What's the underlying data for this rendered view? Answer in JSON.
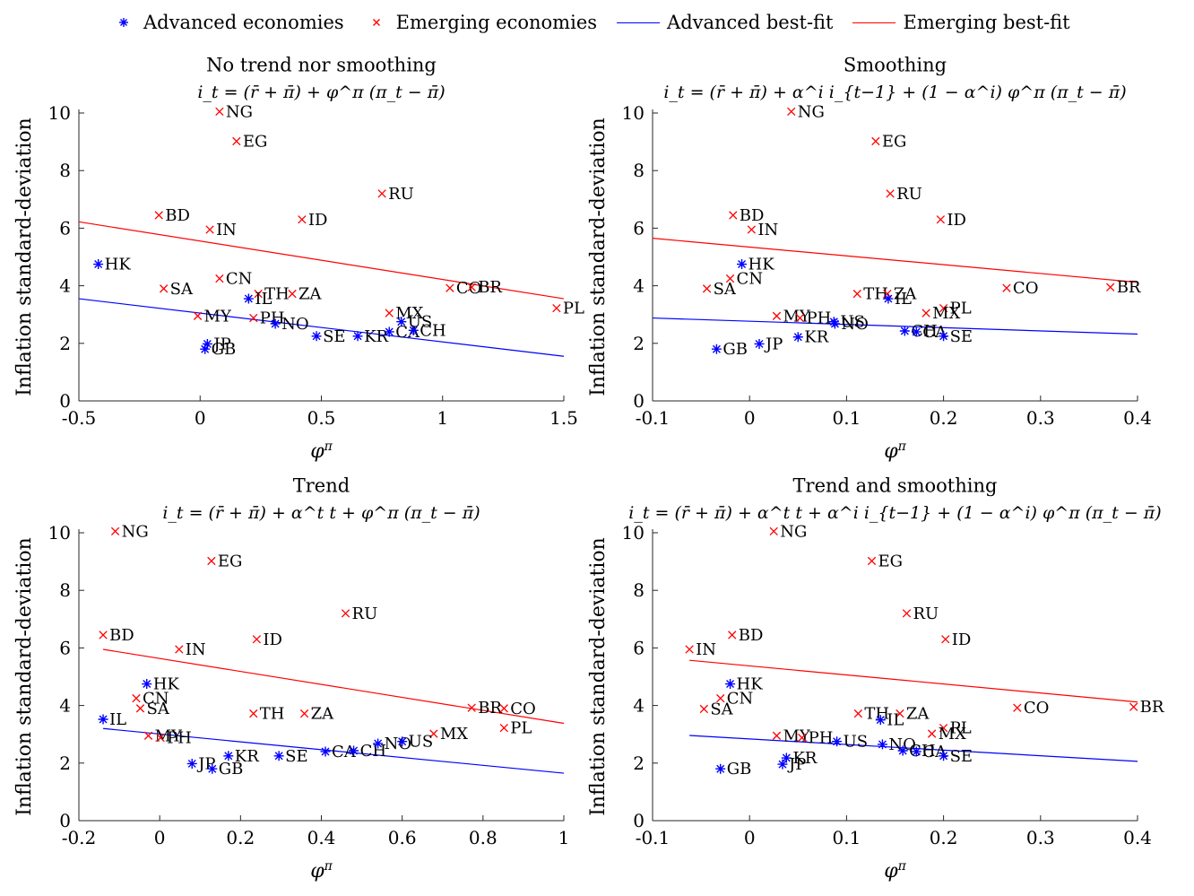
{
  "colors": {
    "advanced": "#0000ff",
    "emerging": "#ff0000",
    "axis": "#262626"
  },
  "legend": {
    "adv_markers": "Advanced economies",
    "emg_markers": "Emerging economies",
    "adv_fit": "Advanced best-fit",
    "emg_fit": "Emerging best-fit"
  },
  "chart_data": [
    {
      "type": "scatter",
      "title": "No trend nor smoothing",
      "subtitle": "i_t = (r̄ + π̄) + φ^π (π_t − π̄)",
      "xlabel": "φ^π",
      "ylabel": "Inflation standard-deviation",
      "xlim": [
        -0.5,
        1.5
      ],
      "ylim": [
        0,
        10
      ],
      "xticks": [
        "-0.5",
        "0",
        "0.5",
        "1",
        "1.5"
      ],
      "xtick_values": [
        -0.5,
        0,
        0.5,
        1,
        1.5
      ],
      "yticks": [
        "0",
        "2",
        "4",
        "6",
        "8",
        "10"
      ],
      "ytick_values": [
        0,
        2,
        4,
        6,
        8,
        10
      ],
      "grid": false,
      "advanced": [
        {
          "label": "HK",
          "x": -0.42,
          "y": 4.75
        },
        {
          "label": "IL",
          "x": 0.2,
          "y": 3.55
        },
        {
          "label": "JP",
          "x": 0.03,
          "y": 1.98
        },
        {
          "label": "GB",
          "x": 0.02,
          "y": 1.8
        },
        {
          "label": "NO",
          "x": 0.31,
          "y": 2.68
        },
        {
          "label": "SE",
          "x": 0.48,
          "y": 2.25
        },
        {
          "label": "KR",
          "x": 0.65,
          "y": 2.25
        },
        {
          "label": "CA",
          "x": 0.78,
          "y": 2.4
        },
        {
          "label": "US",
          "x": 0.83,
          "y": 2.75
        },
        {
          "label": "CH",
          "x": 0.88,
          "y": 2.45
        }
      ],
      "emerging": [
        {
          "label": "NG",
          "x": 0.08,
          "y": 10.05
        },
        {
          "label": "EG",
          "x": 0.15,
          "y": 9.02
        },
        {
          "label": "RU",
          "x": 0.75,
          "y": 7.2
        },
        {
          "label": "BD",
          "x": -0.17,
          "y": 6.45
        },
        {
          "label": "ID",
          "x": 0.42,
          "y": 6.3
        },
        {
          "label": "IN",
          "x": 0.04,
          "y": 5.95
        },
        {
          "label": "CN",
          "x": 0.08,
          "y": 4.25
        },
        {
          "label": "SA",
          "x": -0.15,
          "y": 3.9
        },
        {
          "label": "TH",
          "x": 0.24,
          "y": 3.72
        },
        {
          "label": "ZA",
          "x": 0.38,
          "y": 3.72
        },
        {
          "label": "CO",
          "x": 1.03,
          "y": 3.92
        },
        {
          "label": "BR",
          "x": 1.12,
          "y": 3.95
        },
        {
          "label": "PL",
          "x": 1.47,
          "y": 3.22
        },
        {
          "label": "MX",
          "x": 0.78,
          "y": 3.05
        },
        {
          "label": "MY",
          "x": -0.01,
          "y": 2.95
        },
        {
          "label": "PH",
          "x": 0.22,
          "y": 2.88
        }
      ],
      "fit_advanced": [
        [
          -0.5,
          3.55
        ],
        [
          1.5,
          1.55
        ]
      ],
      "fit_emerging": [
        [
          -0.5,
          6.22
        ],
        [
          1.5,
          3.55
        ]
      ]
    },
    {
      "type": "scatter",
      "title": "Smoothing",
      "subtitle": "i_t = (r̄ + π̄) + α^i i_{t−1} + (1 − α^i) φ^π (π_t − π̄)",
      "xlabel": "φ^π",
      "ylabel": "Inflation standard-deviation",
      "xlim": [
        -0.1,
        0.4
      ],
      "ylim": [
        0,
        10
      ],
      "xticks": [
        "-0.1",
        "0",
        "0.1",
        "0.2",
        "0.3",
        "0.4"
      ],
      "xtick_values": [
        -0.1,
        0,
        0.1,
        0.2,
        0.3,
        0.4
      ],
      "yticks": [
        "0",
        "2",
        "4",
        "6",
        "8",
        "10"
      ],
      "ytick_values": [
        0,
        2,
        4,
        6,
        8,
        10
      ],
      "grid": false,
      "advanced": [
        {
          "label": "HK",
          "x": -0.008,
          "y": 4.75
        },
        {
          "label": "IL",
          "x": 0.143,
          "y": 3.55
        },
        {
          "label": "JP",
          "x": 0.01,
          "y": 1.98
        },
        {
          "label": "GB",
          "x": -0.034,
          "y": 1.8
        },
        {
          "label": "KR",
          "x": 0.05,
          "y": 2.22
        },
        {
          "label": "US",
          "x": 0.087,
          "y": 2.75
        },
        {
          "label": "NO",
          "x": 0.088,
          "y": 2.68
        },
        {
          "label": "CH",
          "x": 0.16,
          "y": 2.43
        },
        {
          "label": "CA",
          "x": 0.172,
          "y": 2.4
        },
        {
          "label": "SE",
          "x": 0.2,
          "y": 2.25
        }
      ],
      "emerging": [
        {
          "label": "NG",
          "x": 0.043,
          "y": 10.05
        },
        {
          "label": "EG",
          "x": 0.13,
          "y": 9.02
        },
        {
          "label": "RU",
          "x": 0.145,
          "y": 7.2
        },
        {
          "label": "BD",
          "x": -0.017,
          "y": 6.45
        },
        {
          "label": "ID",
          "x": 0.197,
          "y": 6.3
        },
        {
          "label": "IN",
          "x": 0.002,
          "y": 5.95
        },
        {
          "label": "CN",
          "x": -0.02,
          "y": 4.25
        },
        {
          "label": "SA",
          "x": -0.044,
          "y": 3.9
        },
        {
          "label": "TH",
          "x": 0.111,
          "y": 3.72
        },
        {
          "label": "ZA",
          "x": 0.142,
          "y": 3.72
        },
        {
          "label": "CO",
          "x": 0.265,
          "y": 3.92
        },
        {
          "label": "BR",
          "x": 0.372,
          "y": 3.95
        },
        {
          "label": "PL",
          "x": 0.2,
          "y": 3.22
        },
        {
          "label": "MX",
          "x": 0.182,
          "y": 3.05
        },
        {
          "label": "MY",
          "x": 0.028,
          "y": 2.95
        },
        {
          "label": "PH",
          "x": 0.052,
          "y": 2.88
        }
      ],
      "fit_advanced": [
        [
          -0.1,
          2.88
        ],
        [
          0.4,
          2.32
        ]
      ],
      "fit_emerging": [
        [
          -0.1,
          5.65
        ],
        [
          0.4,
          4.12
        ]
      ]
    },
    {
      "type": "scatter",
      "title": "Trend",
      "subtitle": "i_t = (r̄ + π̄) + α^t t + φ^π (π_t − π̄)",
      "xlabel": "φ^π",
      "ylabel": "Inflation standard-deviation",
      "xlim": [
        -0.2,
        1
      ],
      "ylim": [
        0,
        10
      ],
      "xticks": [
        "-0.2",
        "0",
        "0.2",
        "0.4",
        "0.6",
        "0.8",
        "1"
      ],
      "xtick_values": [
        -0.2,
        0,
        0.2,
        0.4,
        0.6,
        0.8,
        1
      ],
      "yticks": [
        "0",
        "2",
        "4",
        "6",
        "8",
        "10"
      ],
      "ytick_values": [
        0,
        2,
        4,
        6,
        8,
        10
      ],
      "grid": false,
      "advanced": [
        {
          "label": "IL",
          "x": -0.14,
          "y": 3.52
        },
        {
          "label": "HK",
          "x": -0.032,
          "y": 4.75
        },
        {
          "label": "JP",
          "x": 0.08,
          "y": 1.98
        },
        {
          "label": "GB",
          "x": 0.13,
          "y": 1.8
        },
        {
          "label": "KR",
          "x": 0.17,
          "y": 2.25
        },
        {
          "label": "SE",
          "x": 0.295,
          "y": 2.25
        },
        {
          "label": "CA",
          "x": 0.41,
          "y": 2.4
        },
        {
          "label": "CH",
          "x": 0.48,
          "y": 2.43
        },
        {
          "label": "NO",
          "x": 0.54,
          "y": 2.68
        },
        {
          "label": "US",
          "x": 0.6,
          "y": 2.75
        }
      ],
      "emerging": [
        {
          "label": "NG",
          "x": -0.11,
          "y": 10.05
        },
        {
          "label": "EG",
          "x": 0.128,
          "y": 9.02
        },
        {
          "label": "RU",
          "x": 0.46,
          "y": 7.2
        },
        {
          "label": "BD",
          "x": -0.14,
          "y": 6.45
        },
        {
          "label": "ID",
          "x": 0.24,
          "y": 6.3
        },
        {
          "label": "IN",
          "x": 0.048,
          "y": 5.95
        },
        {
          "label": "CN",
          "x": -0.058,
          "y": 4.25
        },
        {
          "label": "SA",
          "x": -0.048,
          "y": 3.9
        },
        {
          "label": "TH",
          "x": 0.232,
          "y": 3.72
        },
        {
          "label": "ZA",
          "x": 0.358,
          "y": 3.72
        },
        {
          "label": "BR",
          "x": 0.772,
          "y": 3.92
        },
        {
          "label": "CO",
          "x": 0.852,
          "y": 3.9
        },
        {
          "label": "PL",
          "x": 0.852,
          "y": 3.22
        },
        {
          "label": "MX",
          "x": 0.678,
          "y": 3.02
        },
        {
          "label": "MY",
          "x": -0.028,
          "y": 2.95
        },
        {
          "label": "PH",
          "x": 0.002,
          "y": 2.88
        }
      ],
      "fit_advanced": [
        [
          -0.14,
          3.2
        ],
        [
          1,
          1.65
        ]
      ],
      "fit_emerging": [
        [
          -0.14,
          5.95
        ],
        [
          1,
          3.38
        ]
      ]
    },
    {
      "type": "scatter",
      "title": "Trend and smoothing",
      "subtitle": "i_t = (r̄ + π̄) + α^t t + α^i i_{t−1} + (1 − α^i) φ^π (π_t − π̄)",
      "xlabel": "φ^π",
      "ylabel": "Inflation standard-deviation",
      "xlim": [
        -0.1,
        0.4
      ],
      "ylim": [
        0,
        10
      ],
      "xticks": [
        "-0.1",
        "0",
        "0.1",
        "0.2",
        "0.3",
        "0.4"
      ],
      "xtick_values": [
        -0.1,
        0,
        0.1,
        0.2,
        0.3,
        0.4
      ],
      "yticks": [
        "0",
        "2",
        "4",
        "6",
        "8",
        "10"
      ],
      "ytick_values": [
        0,
        2,
        4,
        6,
        8,
        10
      ],
      "grid": false,
      "advanced": [
        {
          "label": "HK",
          "x": -0.02,
          "y": 4.75
        },
        {
          "label": "IL",
          "x": 0.135,
          "y": 3.5
        },
        {
          "label": "KR",
          "x": 0.038,
          "y": 2.18
        },
        {
          "label": "JP",
          "x": 0.034,
          "y": 1.96
        },
        {
          "label": "GB",
          "x": -0.03,
          "y": 1.8
        },
        {
          "label": "US",
          "x": 0.09,
          "y": 2.75
        },
        {
          "label": "NO",
          "x": 0.137,
          "y": 2.65
        },
        {
          "label": "CH",
          "x": 0.158,
          "y": 2.43
        },
        {
          "label": "CA",
          "x": 0.172,
          "y": 2.4
        },
        {
          "label": "SE",
          "x": 0.2,
          "y": 2.25
        }
      ],
      "emerging": [
        {
          "label": "NG",
          "x": 0.025,
          "y": 10.05
        },
        {
          "label": "EG",
          "x": 0.126,
          "y": 9.02
        },
        {
          "label": "RU",
          "x": 0.162,
          "y": 7.2
        },
        {
          "label": "BD",
          "x": -0.018,
          "y": 6.45
        },
        {
          "label": "ID",
          "x": 0.202,
          "y": 6.3
        },
        {
          "label": "IN",
          "x": -0.062,
          "y": 5.95
        },
        {
          "label": "CN",
          "x": -0.03,
          "y": 4.25
        },
        {
          "label": "SA",
          "x": -0.047,
          "y": 3.88
        },
        {
          "label": "TH",
          "x": 0.112,
          "y": 3.72
        },
        {
          "label": "ZA",
          "x": 0.155,
          "y": 3.72
        },
        {
          "label": "CO",
          "x": 0.276,
          "y": 3.92
        },
        {
          "label": "BR",
          "x": 0.396,
          "y": 3.95
        },
        {
          "label": "PL",
          "x": 0.2,
          "y": 3.22
        },
        {
          "label": "MX",
          "x": 0.188,
          "y": 3.02
        },
        {
          "label": "MY",
          "x": 0.028,
          "y": 2.95
        },
        {
          "label": "PH",
          "x": 0.054,
          "y": 2.88
        }
      ],
      "fit_advanced": [
        [
          -0.062,
          2.96
        ],
        [
          0.4,
          2.06
        ]
      ],
      "fit_emerging": [
        [
          -0.062,
          5.57
        ],
        [
          0.4,
          4.12
        ]
      ]
    }
  ]
}
